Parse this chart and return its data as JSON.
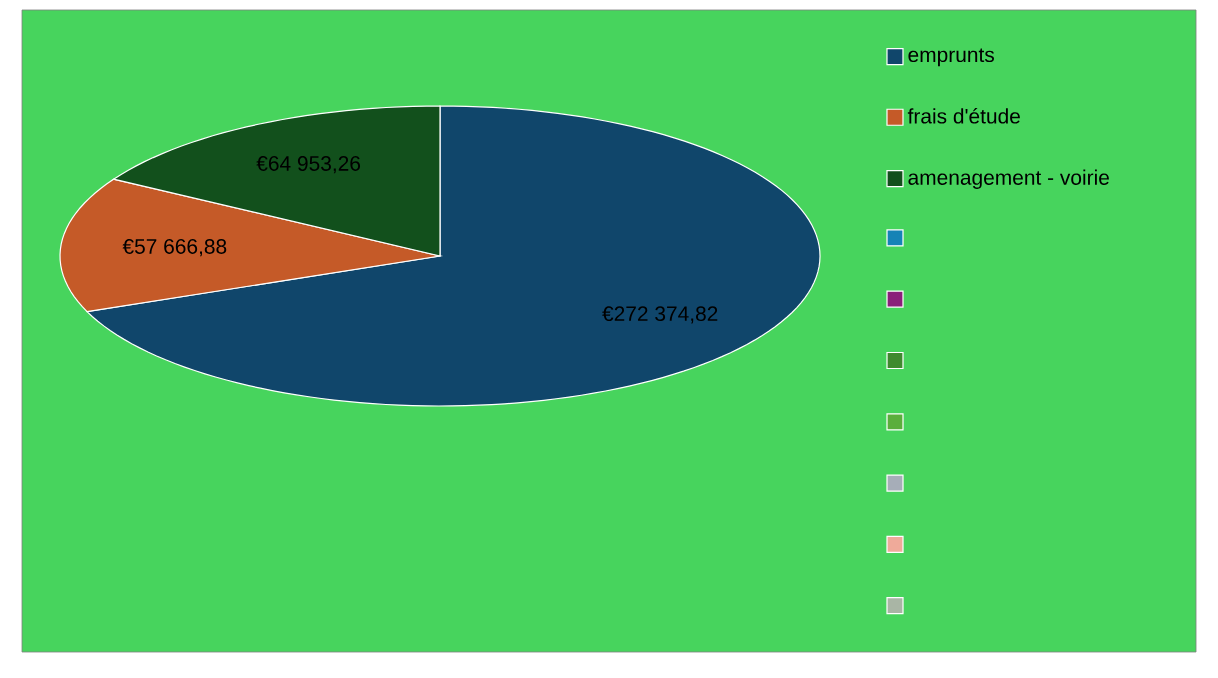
{
  "chart_data": {
    "type": "pie",
    "categories": [
      "emprunts",
      "frais d'étude",
      "amenagement - voirie",
      null,
      null,
      null,
      null,
      null,
      null,
      null
    ],
    "values": [
      272374.82,
      57666.88,
      64953.26,
      0,
      0,
      0,
      0,
      0,
      0,
      0
    ],
    "value_labels": [
      "€272 374,82",
      "€57 666,88",
      "€64 953,26",
      null,
      null,
      null,
      null,
      null,
      null,
      null
    ],
    "colors": [
      "#10466b",
      "#c55a28",
      "#12501c",
      "#1583b6",
      "#8a1f7a",
      "#3f8a2f",
      "#5aae3c",
      "#a6adb8",
      "#efaa9a",
      "#a9b5a5"
    ],
    "legend": "right"
  }
}
